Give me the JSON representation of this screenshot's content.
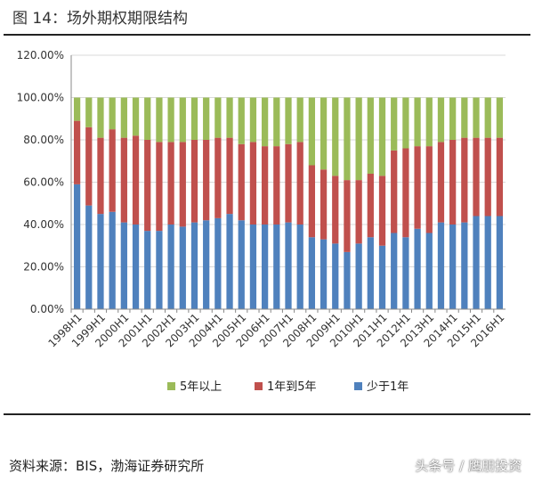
{
  "header": {
    "title": "图 14：场外期权期限结构"
  },
  "footer": {
    "source": "资料来源：BIS，渤海证券研究所",
    "watermark": "头条号 / 鹰朋投资"
  },
  "chart_data": {
    "type": "bar",
    "stacked": true,
    "title": "",
    "xlabel": "",
    "ylabel": "",
    "ylim": [
      0,
      120
    ],
    "y_ticks": [
      "0.00%",
      "20.00%",
      "40.00%",
      "60.00%",
      "80.00%",
      "100.00%",
      "120.00%"
    ],
    "legend_position": "bottom",
    "grid": true,
    "categories": [
      "1998H1",
      "1998H2",
      "1999H1",
      "1999H2",
      "2000H1",
      "2000H2",
      "2001H1",
      "2001H2",
      "2002H1",
      "2002H2",
      "2003H1",
      "2003H2",
      "2004H1",
      "2004H2",
      "2005H1",
      "2005H2",
      "2006H1",
      "2006H2",
      "2007H1",
      "2007H2",
      "2008H1",
      "2008H2",
      "2009H1",
      "2009H2",
      "2010H1",
      "2010H2",
      "2011H1",
      "2011H2",
      "2012H1",
      "2012H2",
      "2013H1",
      "2013H2",
      "2014H1",
      "2014H2",
      "2015H1",
      "2015H2",
      "2016H1"
    ],
    "tick_labels": [
      "1998H1",
      "1999H1",
      "2000H1",
      "2001H1",
      "2002H1",
      "2003H1",
      "2004H1",
      "2005H1",
      "2006H1",
      "2007H1",
      "2008H1",
      "2009H1",
      "2010H1",
      "2011H1",
      "2012H1",
      "2013H1",
      "2014H1",
      "2015H1",
      "2016H1"
    ],
    "series": [
      {
        "name": "少于1年",
        "color": "#4f81bd",
        "values": [
          59,
          49,
          45,
          46,
          41,
          40,
          37,
          37,
          40,
          39,
          41,
          42,
          43,
          45,
          42,
          40,
          40,
          40,
          41,
          40,
          34,
          33,
          31,
          27,
          31,
          34,
          30,
          36,
          34,
          38,
          36,
          41,
          40,
          41,
          44,
          44,
          44
        ]
      },
      {
        "name": "1年到5年",
        "color": "#c0504d",
        "values": [
          30,
          37,
          36,
          39,
          40,
          42,
          43,
          42,
          39,
          40,
          39,
          38,
          38,
          36,
          36,
          39,
          37,
          37,
          37,
          39,
          34,
          33,
          32,
          34,
          30,
          30,
          33,
          39,
          42,
          39,
          41,
          38,
          40,
          40,
          37,
          37,
          37
        ]
      },
      {
        "name": "5年以上",
        "color": "#9bbb59",
        "values": [
          11,
          14,
          19,
          15,
          19,
          18,
          20,
          21,
          21,
          21,
          20,
          20,
          19,
          19,
          22,
          21,
          23,
          23,
          22,
          21,
          32,
          34,
          37,
          39,
          39,
          36,
          37,
          25,
          24,
          23,
          23,
          21,
          20,
          19,
          19,
          19,
          19
        ]
      }
    ]
  }
}
